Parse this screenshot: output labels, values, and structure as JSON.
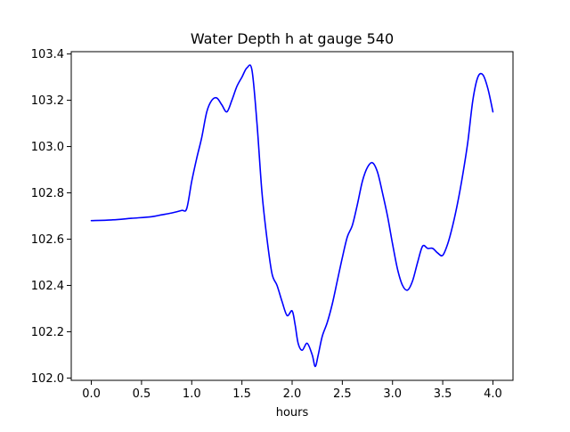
{
  "chart_data": {
    "type": "line",
    "title": "Water Depth h at gauge 540",
    "xlabel": "hours",
    "ylabel": "",
    "xlim": [
      -0.2,
      4.2
    ],
    "ylim": [
      101.99,
      103.41
    ],
    "xticks": [
      0.0,
      0.5,
      1.0,
      1.5,
      2.0,
      2.5,
      3.0,
      3.5,
      4.0
    ],
    "xtick_labels": [
      "0.0",
      "0.5",
      "1.0",
      "1.5",
      "2.0",
      "2.5",
      "3.0",
      "3.5",
      "4.0"
    ],
    "yticks": [
      102.0,
      102.2,
      102.4,
      102.6,
      102.8,
      103.0,
      103.2,
      103.4
    ],
    "ytick_labels": [
      "102.0",
      "102.2",
      "102.4",
      "102.6",
      "102.8",
      "103.0",
      "103.2",
      "103.4"
    ],
    "grid": false,
    "series": [
      {
        "color": "#0000ff",
        "x": [
          0.0,
          0.2,
          0.4,
          0.6,
          0.7,
          0.8,
          0.9,
          0.95,
          1.0,
          1.05,
          1.1,
          1.15,
          1.2,
          1.25,
          1.3,
          1.35,
          1.4,
          1.45,
          1.5,
          1.55,
          1.6,
          1.65,
          1.7,
          1.75,
          1.8,
          1.85,
          1.9,
          1.95,
          2.0,
          2.03,
          2.06,
          2.1,
          2.15,
          2.2,
          2.23,
          2.26,
          2.3,
          2.35,
          2.4,
          2.45,
          2.5,
          2.55,
          2.6,
          2.65,
          2.7,
          2.75,
          2.8,
          2.85,
          2.9,
          2.95,
          3.0,
          3.05,
          3.1,
          3.15,
          3.2,
          3.25,
          3.3,
          3.35,
          3.4,
          3.45,
          3.5,
          3.55,
          3.6,
          3.65,
          3.7,
          3.75,
          3.8,
          3.85,
          3.9,
          3.95,
          4.0
        ],
        "y": [
          102.68,
          102.683,
          102.69,
          102.697,
          102.705,
          102.713,
          102.724,
          102.732,
          102.85,
          102.95,
          103.04,
          103.15,
          103.2,
          103.21,
          103.18,
          103.15,
          103.2,
          103.26,
          103.3,
          103.34,
          103.33,
          103.1,
          102.8,
          102.6,
          102.45,
          102.4,
          102.33,
          102.27,
          102.29,
          102.23,
          102.15,
          102.12,
          102.15,
          102.1,
          102.05,
          102.1,
          102.18,
          102.24,
          102.32,
          102.42,
          102.52,
          102.61,
          102.66,
          102.75,
          102.85,
          102.91,
          102.93,
          102.89,
          102.8,
          102.7,
          102.58,
          102.47,
          102.4,
          102.38,
          102.42,
          102.5,
          102.57,
          102.56,
          102.56,
          102.54,
          102.53,
          102.58,
          102.66,
          102.76,
          102.88,
          103.02,
          103.2,
          103.3,
          103.31,
          103.25,
          103.15
        ]
      }
    ]
  }
}
